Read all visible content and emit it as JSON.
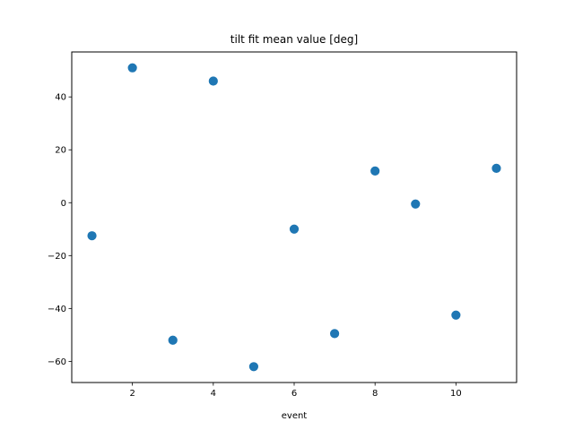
{
  "chart_data": {
    "type": "scatter",
    "title": "tilt fit mean value [deg]",
    "xlabel": "event",
    "ylabel": "",
    "xlim": [
      0.5,
      11.5
    ],
    "ylim": [
      -68,
      57
    ],
    "xticks": [
      2,
      4,
      6,
      8,
      10
    ],
    "yticks": [
      -60,
      -40,
      -20,
      0,
      20,
      40
    ],
    "grid": false,
    "marker_color": "#1f77b4",
    "series": [
      {
        "x": [
          1,
          2,
          3,
          4,
          5,
          6,
          7,
          8,
          9,
          10,
          11
        ],
        "y": [
          -12.5,
          51,
          -52,
          46,
          -62,
          -10,
          -49.5,
          12,
          -0.5,
          -42.5,
          13
        ]
      }
    ]
  }
}
